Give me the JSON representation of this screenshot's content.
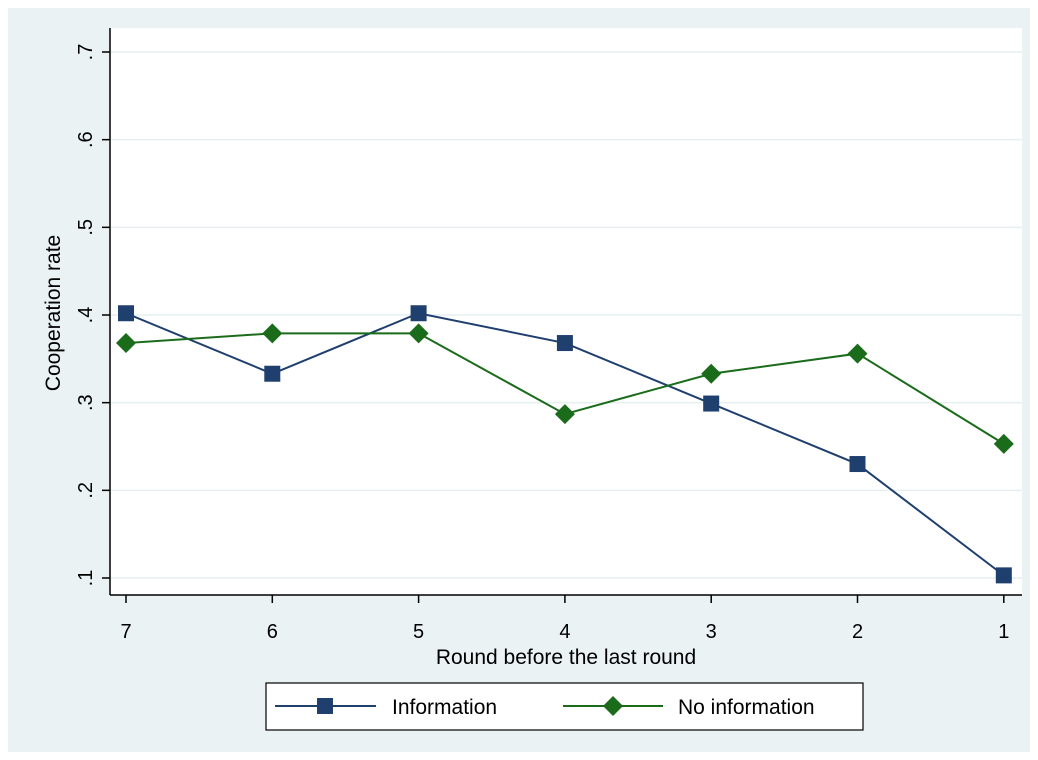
{
  "chart_data": {
    "type": "line",
    "title": "",
    "xlabel": "Round before the last round",
    "ylabel": "Cooperation rate",
    "categories": [
      "7",
      "6",
      "5",
      "4",
      "3",
      "2",
      "1"
    ],
    "yticks": [
      ".1",
      ".2",
      ".3",
      ".4",
      ".5",
      ".6",
      ".7"
    ],
    "ytick_values": [
      0.1,
      0.2,
      0.3,
      0.4,
      0.5,
      0.6,
      0.7
    ],
    "ylim": [
      0.1,
      0.7
    ],
    "grid": true,
    "legend_position": "bottom",
    "series": [
      {
        "name": "Information",
        "marker": "square",
        "color": "#1f3f6e",
        "values": [
          0.402,
          0.333,
          0.402,
          0.368,
          0.299,
          0.23,
          0.103
        ]
      },
      {
        "name": "No information",
        "marker": "diamond",
        "color": "#1a6b1a",
        "values": [
          0.368,
          0.379,
          0.379,
          0.287,
          0.333,
          0.356,
          0.253
        ]
      }
    ]
  },
  "colors": {
    "background": "#eaf2f3",
    "plot_area": "#ffffff",
    "grid": "#e6eff0",
    "axis": "#000000"
  }
}
